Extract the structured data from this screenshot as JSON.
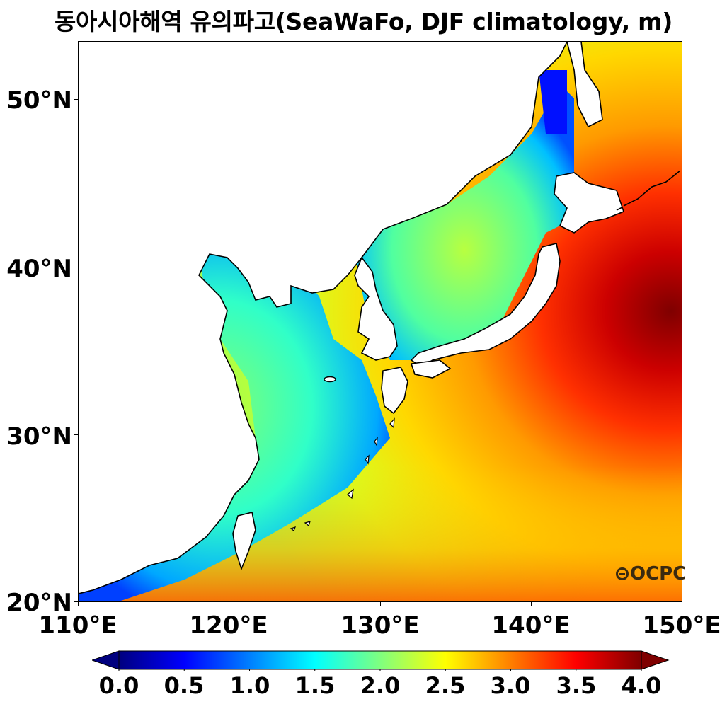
{
  "title": "동아시아해역 유의파고(SeaWaFo, DJF climatology, m)",
  "logo_text": "OCPC",
  "map": {
    "projection": "PlateCarree",
    "lon_range": [
      110,
      150
    ],
    "lat_range": [
      20,
      53.5
    ],
    "variable": "significant wave height",
    "units": "m",
    "lat_ticks": [
      {
        "value": 50,
        "label": "50°N"
      },
      {
        "value": 40,
        "label": "40°N"
      },
      {
        "value": 30,
        "label": "30°N"
      },
      {
        "value": 20,
        "label": "20°N"
      }
    ],
    "lon_ticks": [
      {
        "value": 110,
        "label": "110°E"
      },
      {
        "value": 120,
        "label": "120°E"
      },
      {
        "value": 130,
        "label": "130°E"
      },
      {
        "value": 140,
        "label": "140°E"
      },
      {
        "value": 150,
        "label": "150°E"
      }
    ]
  },
  "colorbar": {
    "colormap": "jet",
    "range": [
      0.0,
      4.0
    ],
    "extend": "both",
    "ticks": [
      "0.0",
      "0.5",
      "1.0",
      "1.5",
      "2.0",
      "2.5",
      "3.0",
      "3.5",
      "4.0"
    ],
    "colors": [
      "#00007f",
      "#0000ff",
      "#007fff",
      "#00ffff",
      "#7fff7f",
      "#ffff00",
      "#ff7f00",
      "#ff0000",
      "#7f0000"
    ]
  }
}
